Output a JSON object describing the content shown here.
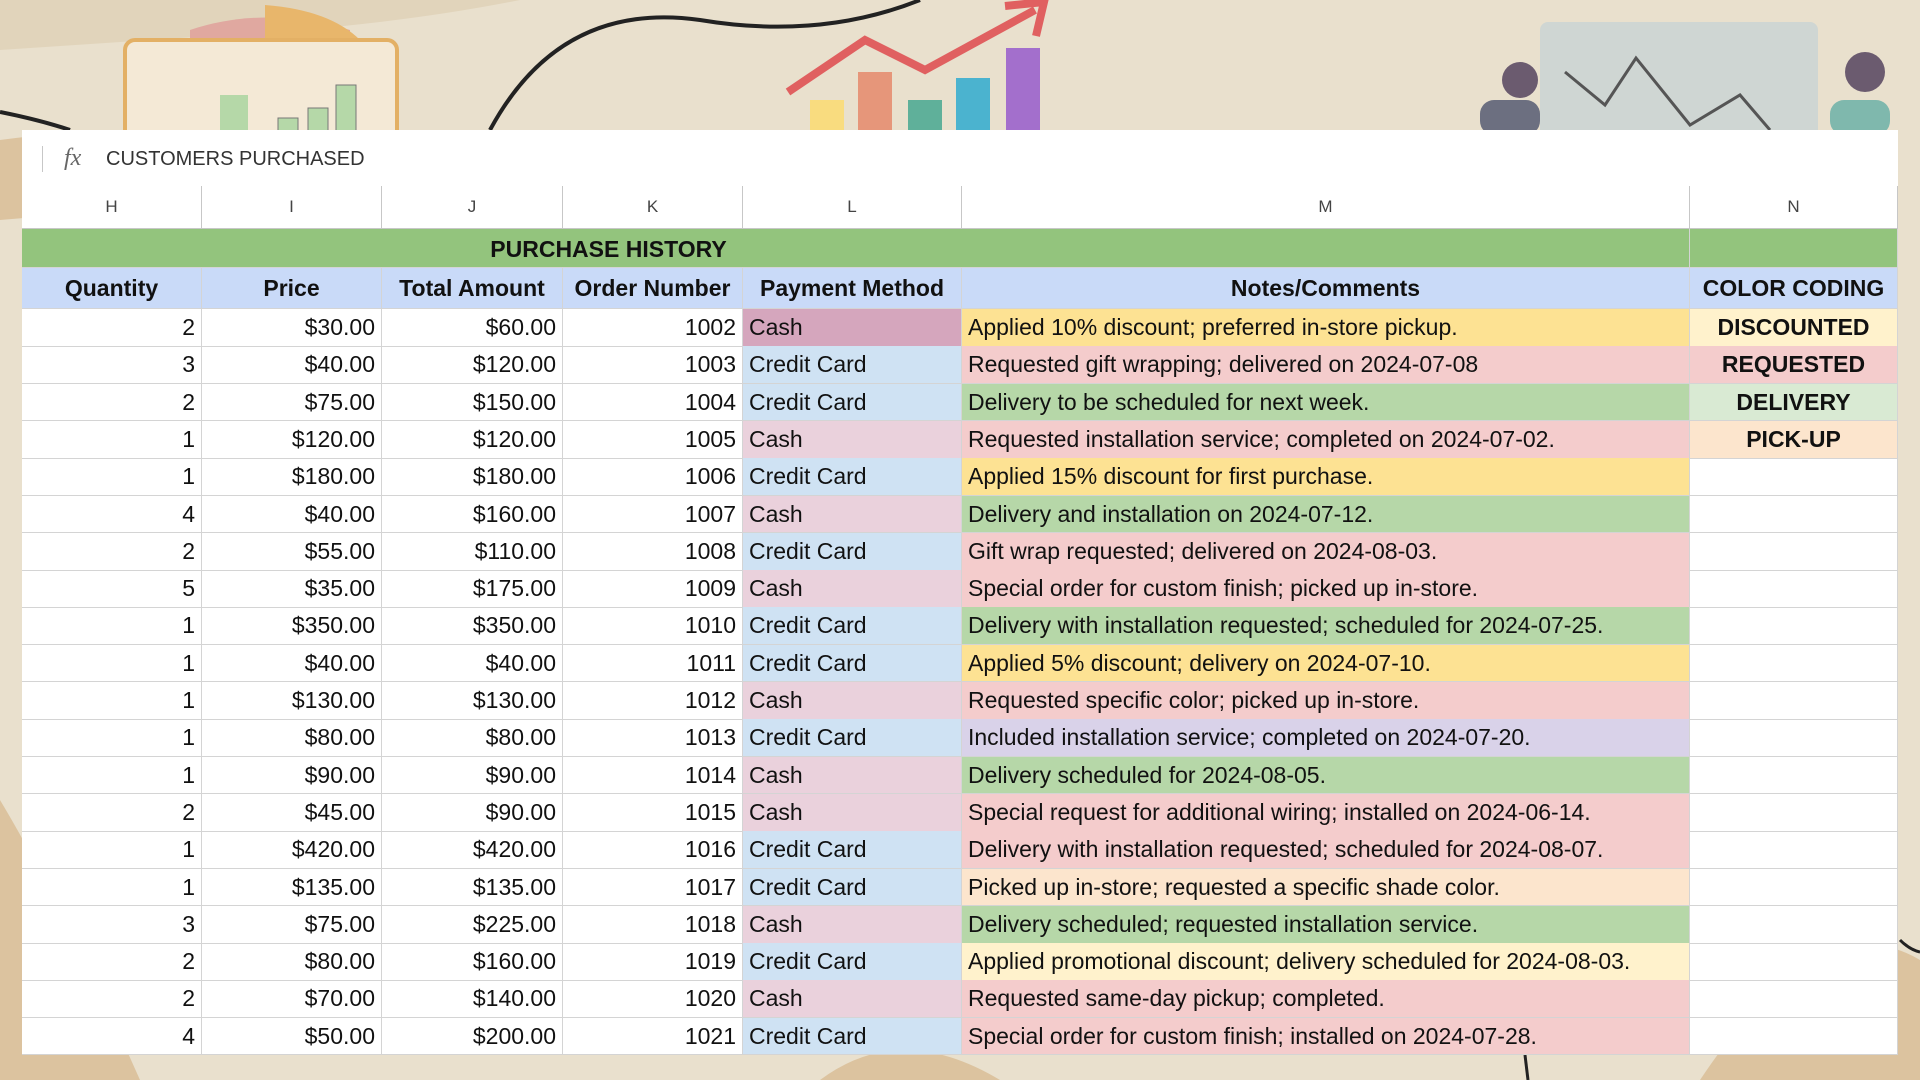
{
  "formula_bar": {
    "icon": "fx",
    "text": "CUSTOMERS PURCHASED"
  },
  "columns": [
    "H",
    "I",
    "J",
    "K",
    "L",
    "M",
    "N"
  ],
  "table": {
    "title": "PURCHASE HISTORY",
    "headers": [
      "Quantity",
      "Price",
      "Total Amount",
      "Order Number",
      "Payment Method",
      "Notes/Comments",
      "COLOR CODING"
    ],
    "rows": [
      {
        "cells": [
          2,
          "$30.00",
          "$60.00",
          1002,
          "Cash",
          "Applied 10% discount; preferred in-store pickup."
        ],
        "payment_color": "#d5a6bd",
        "note_color": "#fde293"
      },
      {
        "cells": [
          3,
          "$40.00",
          "$120.00",
          1003,
          "Credit Card",
          "Requested gift wrapping; delivered on 2024-07-08"
        ],
        "payment_color": "#cfe2f3",
        "note_color": "#f4cccc"
      },
      {
        "cells": [
          2,
          "$75.00",
          "$150.00",
          1004,
          "Credit Card",
          "Delivery to be scheduled for next week."
        ],
        "payment_color": "#cfe2f3",
        "note_color": "#b6d7a8"
      },
      {
        "cells": [
          1,
          "$120.00",
          "$120.00",
          1005,
          "Cash",
          "Requested installation service; completed on 2024-07-02."
        ],
        "payment_color": "#ead1dc",
        "note_color": "#f4cccc"
      },
      {
        "cells": [
          1,
          "$180.00",
          "$180.00",
          1006,
          "Credit Card",
          "Applied 15% discount for first purchase."
        ],
        "payment_color": "#cfe2f3",
        "note_color": "#fde293"
      },
      {
        "cells": [
          4,
          "$40.00",
          "$160.00",
          1007,
          "Cash",
          "Delivery and installation on 2024-07-12."
        ],
        "payment_color": "#ead1dc",
        "note_color": "#b6d7a8"
      },
      {
        "cells": [
          2,
          "$55.00",
          "$110.00",
          1008,
          "Credit Card",
          "Gift wrap requested; delivered on 2024-08-03."
        ],
        "payment_color": "#cfe2f3",
        "note_color": "#f4cccc"
      },
      {
        "cells": [
          5,
          "$35.00",
          "$175.00",
          1009,
          "Cash",
          "Special order for custom finish; picked up in-store."
        ],
        "payment_color": "#ead1dc",
        "note_color": "#f4cccc"
      },
      {
        "cells": [
          1,
          "$350.00",
          "$350.00",
          1010,
          "Credit Card",
          "Delivery with installation requested; scheduled for 2024-07-25."
        ],
        "payment_color": "#cfe2f3",
        "note_color": "#b6d7a8"
      },
      {
        "cells": [
          1,
          "$40.00",
          "$40.00",
          1011,
          "Credit Card",
          "Applied 5% discount; delivery on 2024-07-10."
        ],
        "payment_color": "#cfe2f3",
        "note_color": "#fde293"
      },
      {
        "cells": [
          1,
          "$130.00",
          "$130.00",
          1012,
          "Cash",
          "Requested specific color; picked up in-store."
        ],
        "payment_color": "#ead1dc",
        "note_color": "#f4cccc"
      },
      {
        "cells": [
          1,
          "$80.00",
          "$80.00",
          1013,
          "Credit Card",
          "Included installation service; completed on 2024-07-20."
        ],
        "payment_color": "#cfe2f3",
        "note_color": "#d9d2e9"
      },
      {
        "cells": [
          1,
          "$90.00",
          "$90.00",
          1014,
          "Cash",
          "Delivery scheduled for 2024-08-05."
        ],
        "payment_color": "#ead1dc",
        "note_color": "#b6d7a8"
      },
      {
        "cells": [
          2,
          "$45.00",
          "$90.00",
          1015,
          "Cash",
          "Special request for additional wiring; installed on 2024-06-14."
        ],
        "payment_color": "#ead1dc",
        "note_color": "#f4cccc"
      },
      {
        "cells": [
          1,
          "$420.00",
          "$420.00",
          1016,
          "Credit Card",
          "Delivery with installation requested; scheduled for 2024-08-07."
        ],
        "payment_color": "#cfe2f3",
        "note_color": "#f4cccc"
      },
      {
        "cells": [
          1,
          "$135.00",
          "$135.00",
          1017,
          "Credit Card",
          "Picked up in-store; requested a specific shade color."
        ],
        "payment_color": "#cfe2f3",
        "note_color": "#fce5cd"
      },
      {
        "cells": [
          3,
          "$75.00",
          "$225.00",
          1018,
          "Cash",
          "Delivery scheduled; requested installation service."
        ],
        "payment_color": "#ead1dc",
        "note_color": "#b6d7a8"
      },
      {
        "cells": [
          2,
          "$80.00",
          "$160.00",
          1019,
          "Credit Card",
          "Applied promotional discount; delivery scheduled for 2024-08-03."
        ],
        "payment_color": "#cfe2f3",
        "note_color": "#fff2cc"
      },
      {
        "cells": [
          2,
          "$70.00",
          "$140.00",
          1020,
          "Cash",
          "Requested same-day pickup; completed."
        ],
        "payment_color": "#ead1dc",
        "note_color": "#f4cccc"
      },
      {
        "cells": [
          4,
          "$50.00",
          "$200.00",
          1021,
          "Credit Card",
          "Special order for custom finish; installed on 2024-07-28."
        ],
        "payment_color": "#cfe2f3",
        "note_color": "#f4cccc"
      }
    ],
    "color_coding": [
      {
        "label": "DISCOUNTED",
        "color": "#fff2cc"
      },
      {
        "label": "REQUESTED",
        "color": "#f4cccc"
      },
      {
        "label": "DELIVERY",
        "color": "#d9ead3"
      },
      {
        "label": "PICK-UP",
        "color": "#fce5cd"
      }
    ]
  }
}
